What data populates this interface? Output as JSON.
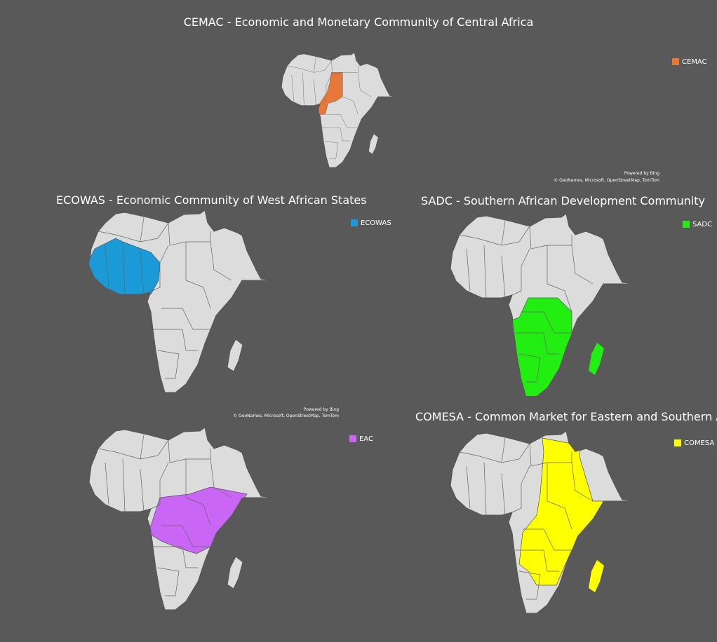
{
  "maps": [
    {
      "title": "CEMAC - Economic and Monetary Community of Central Africa",
      "legend": {
        "label": "CEMAC",
        "color": "#e8773a"
      },
      "attribution": [
        "Powered by Bing",
        "© GeoNames, Microsoft, OpenStreetMap, TomTom"
      ]
    },
    {
      "title": "ECOWAS - Economic Community of West African States",
      "legend": {
        "label": "ECOWAS",
        "color": "#1a9bd7"
      },
      "attribution": [
        "Powered by Bing",
        "© GeoNames, Microsoft, OpenStreetMap, TomTom"
      ]
    },
    {
      "title": "SADC - Southern African Development Community",
      "legend": {
        "label": "SADC",
        "color": "#22ee11"
      }
    },
    {
      "legend": {
        "label": "EAC",
        "color": "#c966f5"
      }
    },
    {
      "title": "COMESA - Common Market for Eastern and Southern Africa",
      "legend": {
        "label": "COMESA",
        "color": "#ffff00"
      }
    }
  ]
}
